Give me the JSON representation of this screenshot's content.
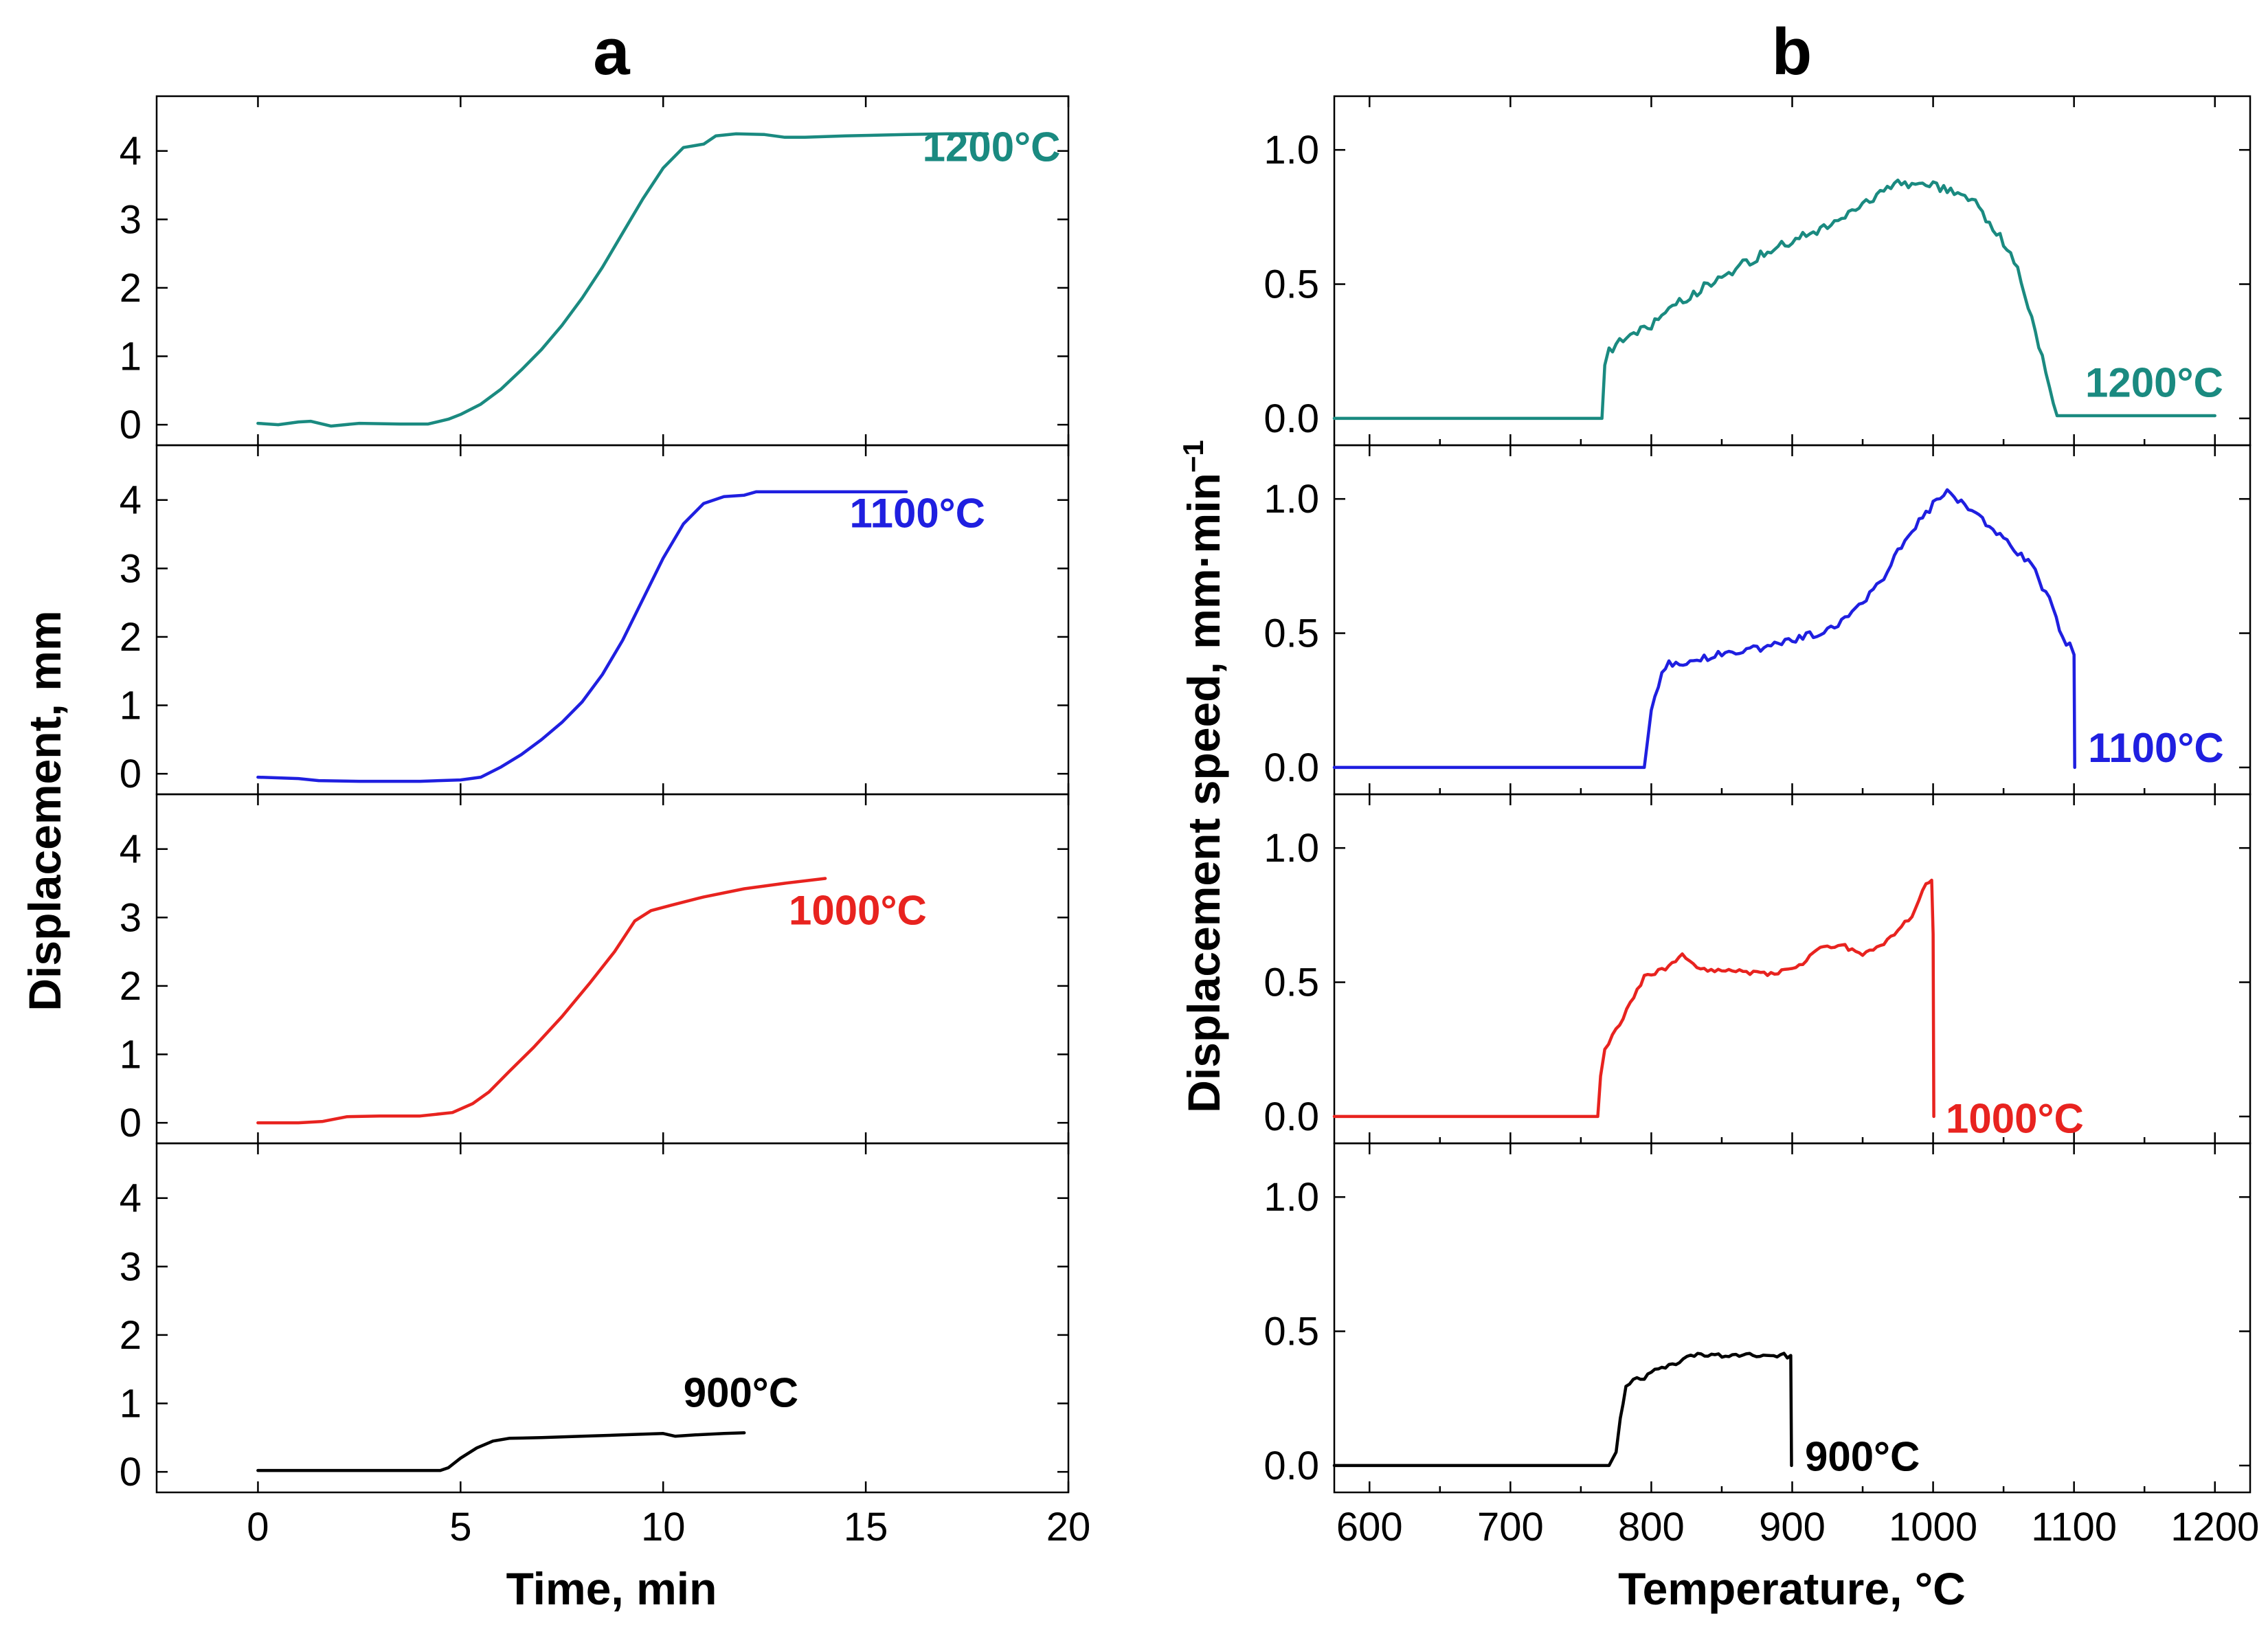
{
  "figure": {
    "panel_a_label": "a",
    "panel_b_label": "b"
  },
  "colors": {
    "c1200": "#1a8a80",
    "c1100": "#1f1fe0",
    "c1000": "#e8231f",
    "c900": "#000000"
  },
  "chart_data": [
    {
      "id": "a",
      "type": "line",
      "xlabel": "Time, min",
      "ylabel": "Displacement, mm",
      "xlim": [
        -2.5,
        20
      ],
      "ylim": [
        -0.3,
        4.8
      ],
      "xticks": [
        0,
        5,
        10,
        15,
        20
      ],
      "yticks": [
        0,
        1,
        2,
        3,
        4
      ],
      "grid": false,
      "stacked_panels": true,
      "series": [
        {
          "name": "1200°C",
          "color_key": "c1200",
          "points": [
            [
              0,
              0.02
            ],
            [
              0.5,
              0.0
            ],
            [
              1,
              0.04
            ],
            [
              1.3,
              0.05
            ],
            [
              1.8,
              -0.02
            ],
            [
              2.5,
              0.02
            ],
            [
              3.5,
              0.01
            ],
            [
              4.2,
              0.01
            ],
            [
              4.7,
              0.08
            ],
            [
              5,
              0.15
            ],
            [
              5.5,
              0.3
            ],
            [
              6,
              0.52
            ],
            [
              6.5,
              0.8
            ],
            [
              7,
              1.1
            ],
            [
              7.5,
              1.45
            ],
            [
              8,
              1.85
            ],
            [
              8.5,
              2.3
            ],
            [
              9,
              2.8
            ],
            [
              9.5,
              3.3
            ],
            [
              10,
              3.75
            ],
            [
              10.5,
              4.05
            ],
            [
              11,
              4.1
            ],
            [
              11.3,
              4.22
            ],
            [
              11.8,
              4.25
            ],
            [
              12.5,
              4.24
            ],
            [
              13,
              4.2
            ],
            [
              13.5,
              4.2
            ],
            [
              14.5,
              4.22
            ],
            [
              16,
              4.24
            ],
            [
              17,
              4.25
            ],
            [
              18,
              4.25
            ]
          ]
        },
        {
          "name": "1100°C",
          "color_key": "c1100",
          "points": [
            [
              0,
              -0.05
            ],
            [
              1,
              -0.07
            ],
            [
              1.5,
              -0.1
            ],
            [
              2.5,
              -0.11
            ],
            [
              4,
              -0.11
            ],
            [
              5,
              -0.09
            ],
            [
              5.5,
              -0.05
            ],
            [
              6,
              0.1
            ],
            [
              6.5,
              0.28
            ],
            [
              7,
              0.5
            ],
            [
              7.5,
              0.75
            ],
            [
              8,
              1.05
            ],
            [
              8.5,
              1.45
            ],
            [
              9,
              1.95
            ],
            [
              9.5,
              2.55
            ],
            [
              10,
              3.15
            ],
            [
              10.5,
              3.65
            ],
            [
              11,
              3.95
            ],
            [
              11.5,
              4.05
            ],
            [
              12,
              4.07
            ],
            [
              12.3,
              4.12
            ],
            [
              13,
              4.12
            ],
            [
              14,
              4.12
            ],
            [
              15,
              4.12
            ],
            [
              16,
              4.12
            ]
          ]
        },
        {
          "name": "1000°C",
          "color_key": "c1000",
          "points": [
            [
              0,
              0.0
            ],
            [
              1,
              0.0
            ],
            [
              1.6,
              0.02
            ],
            [
              2.2,
              0.09
            ],
            [
              3,
              0.1
            ],
            [
              4,
              0.1
            ],
            [
              4.8,
              0.15
            ],
            [
              5.3,
              0.28
            ],
            [
              5.7,
              0.45
            ],
            [
              6.2,
              0.75
            ],
            [
              6.8,
              1.1
            ],
            [
              7.5,
              1.55
            ],
            [
              8.2,
              2.05
            ],
            [
              8.8,
              2.5
            ],
            [
              9.3,
              2.95
            ],
            [
              9.7,
              3.1
            ],
            [
              10.2,
              3.18
            ],
            [
              11,
              3.3
            ],
            [
              12,
              3.42
            ],
            [
              13,
              3.5
            ],
            [
              14,
              3.57
            ]
          ]
        },
        {
          "name": "900°C",
          "color_key": "c900",
          "points": [
            [
              0,
              0.02
            ],
            [
              1,
              0.02
            ],
            [
              2,
              0.02
            ],
            [
              3,
              0.02
            ],
            [
              4.5,
              0.02
            ],
            [
              4.7,
              0.06
            ],
            [
              5,
              0.2
            ],
            [
              5.4,
              0.35
            ],
            [
              5.8,
              0.45
            ],
            [
              6.2,
              0.49
            ],
            [
              7,
              0.5
            ],
            [
              8,
              0.52
            ],
            [
              9,
              0.54
            ],
            [
              10,
              0.56
            ],
            [
              10.3,
              0.52
            ],
            [
              10.8,
              0.54
            ],
            [
              11.5,
              0.56
            ],
            [
              12,
              0.57
            ]
          ]
        }
      ],
      "annotations": [
        {
          "text": "1200°C",
          "x": 16.4,
          "y": 3.85,
          "color_key": "c1200"
        },
        {
          "text": "1100°C",
          "x": 14.6,
          "y": 3.6,
          "color_key": "c1100"
        },
        {
          "text": "1000°C",
          "x": 13.1,
          "y": 2.9,
          "color_key": "c1000"
        },
        {
          "text": "900°C",
          "x": 10.5,
          "y": 0.95,
          "color_key": "c900"
        }
      ]
    },
    {
      "id": "b",
      "type": "line",
      "xlabel": "Temperature, °C",
      "ylabel": "Displacement speed, mm·min",
      "ylabel_superscript": "−1",
      "xlim": [
        575,
        1225
      ],
      "ylim": [
        -0.1,
        1.2
      ],
      "xticks": [
        600,
        700,
        800,
        900,
        1000,
        1100,
        1200
      ],
      "yticks": [
        0.0,
        0.5,
        1.0
      ],
      "ytick_labels": [
        "0.0",
        "0.5",
        "1.0"
      ],
      "grid": false,
      "stacked_panels": true,
      "series": [
        {
          "name": "1200°C",
          "color_key": "c1200",
          "noise": 0.018,
          "points": [
            [
              575,
              0.0
            ],
            [
              760,
              0.0
            ],
            [
              765,
              0.0
            ],
            [
              767,
              0.2
            ],
            [
              770,
              0.25
            ],
            [
              780,
              0.3
            ],
            [
              800,
              0.35
            ],
            [
              825,
              0.45
            ],
            [
              850,
              0.53
            ],
            [
              875,
              0.6
            ],
            [
              900,
              0.66
            ],
            [
              925,
              0.72
            ],
            [
              950,
              0.8
            ],
            [
              975,
              0.87
            ],
            [
              990,
              0.88
            ],
            [
              1010,
              0.85
            ],
            [
              1030,
              0.8
            ],
            [
              1045,
              0.7
            ],
            [
              1060,
              0.55
            ],
            [
              1070,
              0.38
            ],
            [
              1080,
              0.18
            ],
            [
              1088,
              0.01
            ],
            [
              1200,
              0.01
            ]
          ]
        },
        {
          "name": "1100°C",
          "color_key": "c1100",
          "noise": 0.015,
          "points": [
            [
              575,
              0.0
            ],
            [
              795,
              0.0
            ],
            [
              797,
              0.08
            ],
            [
              800,
              0.2
            ],
            [
              805,
              0.3
            ],
            [
              810,
              0.38
            ],
            [
              830,
              0.4
            ],
            [
              850,
              0.42
            ],
            [
              880,
              0.45
            ],
            [
              900,
              0.47
            ],
            [
              930,
              0.52
            ],
            [
              950,
              0.62
            ],
            [
              965,
              0.7
            ],
            [
              980,
              0.85
            ],
            [
              1000,
              0.98
            ],
            [
              1010,
              1.03
            ],
            [
              1030,
              0.95
            ],
            [
              1050,
              0.85
            ],
            [
              1070,
              0.75
            ],
            [
              1085,
              0.6
            ],
            [
              1092,
              0.48
            ],
            [
              1097,
              0.45
            ],
            [
              1100,
              0.42
            ],
            [
              1100.5,
              0.0
            ]
          ]
        },
        {
          "name": "1000°C",
          "color_key": "c1000",
          "noise": 0.008,
          "points": [
            [
              575,
              0.0
            ],
            [
              762,
              0.0
            ],
            [
              764,
              0.15
            ],
            [
              767,
              0.25
            ],
            [
              775,
              0.32
            ],
            [
              785,
              0.42
            ],
            [
              795,
              0.52
            ],
            [
              810,
              0.55
            ],
            [
              822,
              0.6
            ],
            [
              835,
              0.55
            ],
            [
              860,
              0.54
            ],
            [
              885,
              0.53
            ],
            [
              905,
              0.56
            ],
            [
              920,
              0.63
            ],
            [
              935,
              0.64
            ],
            [
              950,
              0.6
            ],
            [
              965,
              0.64
            ],
            [
              985,
              0.75
            ],
            [
              995,
              0.87
            ],
            [
              999,
              0.88
            ],
            [
              1000,
              0.68
            ],
            [
              1000.5,
              0.0
            ]
          ]
        },
        {
          "name": "900°C",
          "color_key": "c900",
          "noise": 0.01,
          "points": [
            [
              575,
              0.0
            ],
            [
              770,
              0.0
            ],
            [
              775,
              0.05
            ],
            [
              778,
              0.18
            ],
            [
              782,
              0.3
            ],
            [
              795,
              0.33
            ],
            [
              810,
              0.37
            ],
            [
              820,
              0.38
            ],
            [
              828,
              0.41
            ],
            [
              860,
              0.41
            ],
            [
              899,
              0.41
            ],
            [
              899.5,
              0.0
            ]
          ]
        }
      ],
      "annotations": [
        {
          "text": "1200°C",
          "x": 1108,
          "y": 0.08,
          "color_key": "c1200"
        },
        {
          "text": "1100°C",
          "x": 1110,
          "y": 0.02,
          "color_key": "c1100"
        },
        {
          "text": "1000°C",
          "x": 1009,
          "y": -0.06,
          "color_key": "c1000"
        },
        {
          "text": "900°C",
          "x": 909,
          "y": -0.02,
          "color_key": "c900"
        }
      ]
    }
  ]
}
